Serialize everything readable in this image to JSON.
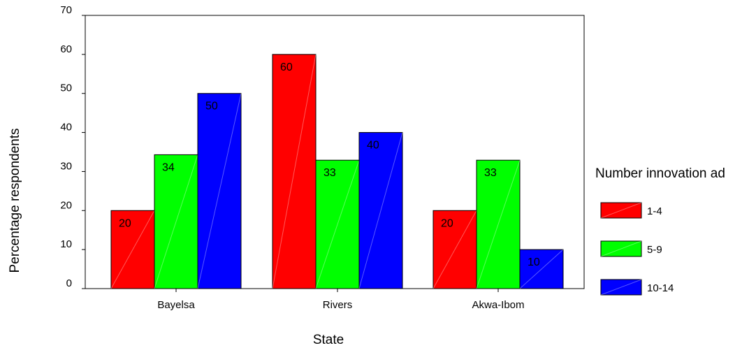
{
  "chart_data": {
    "type": "bar",
    "xlabel": "State",
    "ylabel": "Percentage respondents",
    "categories": [
      "Bayelsa",
      "Rivers",
      "Akwa-Ibom"
    ],
    "series": [
      {
        "name": "1-4",
        "color": "#ff0000",
        "values": [
          20,
          60,
          20
        ],
        "labels": [
          "20",
          "60",
          "20"
        ]
      },
      {
        "name": "5-9",
        "color": "#00ff00",
        "values": [
          34.3,
          32.9,
          32.9
        ],
        "labels": [
          "34",
          "33",
          "33"
        ]
      },
      {
        "name": "10-14",
        "color": "#0000ff",
        "values": [
          50,
          40,
          10
        ],
        "labels": [
          "50",
          "40",
          "10"
        ]
      }
    ],
    "ylim": [
      0,
      70
    ],
    "yticks": [
      "0",
      "10",
      "20",
      "30",
      "40",
      "50",
      "60",
      "70"
    ],
    "legend": {
      "title": "Number innovation ad",
      "position": "right"
    },
    "grid": false
  }
}
